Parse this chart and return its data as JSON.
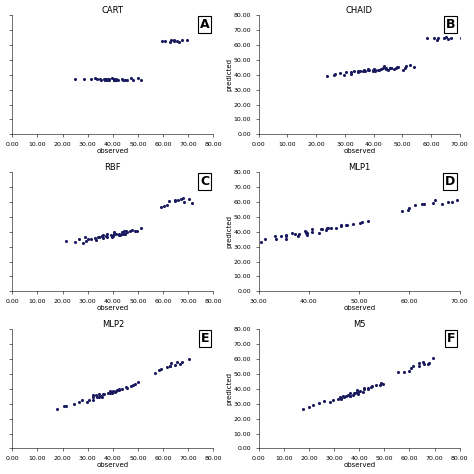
{
  "panels": [
    {
      "label": "A",
      "title": "CART",
      "xlabel": "observed",
      "ylabel": "",
      "xlim": [
        0,
        80
      ],
      "ylim": [
        0,
        80
      ],
      "xticks": [
        0,
        10,
        20,
        30,
        40,
        50,
        60,
        70,
        80
      ],
      "yticks": [
        0,
        10,
        20,
        30,
        40,
        50,
        60,
        70,
        80
      ],
      "show_yticklabels": false,
      "cluster1_x": [
        25,
        28,
        31,
        33,
        34,
        35,
        35,
        36,
        36,
        37,
        37,
        37,
        38,
        38,
        38,
        39,
        39,
        39,
        40,
        40,
        40,
        40,
        41,
        41,
        41,
        42,
        42,
        43,
        44,
        45,
        46,
        47,
        48,
        50,
        52
      ],
      "cluster1_y": [
        37,
        37,
        37,
        37,
        37,
        37,
        37,
        37,
        37,
        37,
        37,
        37,
        37,
        37,
        37,
        37,
        37,
        37,
        37,
        37,
        37,
        37,
        37,
        37,
        37,
        37,
        37,
        37,
        37,
        37,
        37,
        37,
        37,
        37,
        37
      ],
      "cluster2_x": [
        59,
        61,
        62,
        63,
        64,
        65,
        66,
        67,
        68,
        70
      ],
      "cluster2_y": [
        63,
        63,
        63,
        63,
        63,
        63,
        63,
        63,
        63,
        63
      ]
    },
    {
      "label": "B",
      "title": "CHAID",
      "xlabel": "observed",
      "ylabel": "predicted",
      "xlim": [
        0,
        70
      ],
      "ylim": [
        0,
        80
      ],
      "xticks": [
        0,
        10,
        20,
        30,
        40,
        50,
        60,
        70
      ],
      "yticks": [
        0,
        10,
        20,
        30,
        40,
        50,
        60,
        70,
        80
      ],
      "show_yticklabels": true,
      "cluster1_x": [
        24,
        26,
        27,
        28,
        30,
        31,
        32,
        33,
        34,
        34,
        35,
        35,
        36,
        36,
        37,
        37,
        38,
        38,
        39,
        39,
        40,
        40,
        40,
        41,
        41,
        42,
        42,
        43,
        43,
        44,
        44,
        45,
        45,
        46,
        46,
        47,
        47,
        48,
        48,
        49,
        50,
        51,
        52,
        53,
        54
      ],
      "cluster1_y": [
        39,
        40,
        40,
        41,
        40,
        41,
        41,
        42,
        41,
        42,
        42,
        43,
        42,
        43,
        42,
        43,
        43,
        44,
        43,
        44,
        42,
        43,
        44,
        43,
        44,
        43,
        44,
        44,
        45,
        43,
        44,
        44,
        45,
        44,
        45,
        44,
        45,
        45,
        46,
        45,
        44,
        45,
        45,
        46,
        46
      ],
      "cluster2_x": [
        59,
        61,
        62,
        63,
        64,
        65,
        66,
        67,
        70
      ],
      "cluster2_y": [
        65,
        65,
        64,
        65,
        64,
        65,
        64,
        65,
        65
      ]
    },
    {
      "label": "C",
      "title": "RBF",
      "xlabel": "observed",
      "ylabel": "",
      "xlim": [
        0,
        80
      ],
      "ylim": [
        0,
        80
      ],
      "xticks": [
        0,
        10,
        20,
        30,
        40,
        50,
        60,
        70,
        80
      ],
      "yticks": [
        0,
        10,
        20,
        30,
        40,
        50,
        60,
        70,
        80
      ],
      "show_yticklabels": false,
      "cluster1_x": [
        22,
        25,
        27,
        28,
        29,
        30,
        31,
        32,
        33,
        33,
        34,
        34,
        35,
        35,
        36,
        36,
        37,
        37,
        38,
        38,
        39,
        39,
        40,
        40,
        40,
        41,
        41,
        42,
        42,
        43,
        43,
        44,
        44,
        45,
        45,
        46,
        46,
        47,
        48,
        49,
        50,
        51
      ],
      "cluster1_y": [
        33,
        34,
        35,
        33,
        36,
        34,
        35,
        36,
        35,
        36,
        37,
        36,
        37,
        36,
        37,
        38,
        36,
        37,
        38,
        37,
        38,
        37,
        38,
        39,
        37,
        38,
        39,
        38,
        39,
        38,
        39,
        38,
        39,
        40,
        39,
        40,
        39,
        40,
        41,
        40,
        41,
        42
      ],
      "cluster2_x": [
        59,
        61,
        62,
        63,
        64,
        65,
        66,
        67,
        68,
        69,
        70,
        72
      ],
      "cluster2_y": [
        57,
        58,
        59,
        60,
        61,
        60,
        61,
        62,
        63,
        61,
        62,
        60
      ]
    },
    {
      "label": "D",
      "title": "MLP1",
      "xlabel": "observed",
      "ylabel": "predicted",
      "xlim": [
        30,
        70
      ],
      "ylim": [
        0,
        80
      ],
      "xticks": [
        30,
        40,
        50,
        60,
        70
      ],
      "yticks": [
        0,
        10,
        20,
        30,
        40,
        50,
        60,
        70,
        80
      ],
      "show_yticklabels": true,
      "cluster1_x": [
        31,
        32,
        33,
        34,
        35,
        35,
        36,
        36,
        37,
        37,
        38,
        38,
        39,
        39,
        40,
        40,
        40,
        41,
        41,
        42,
        42,
        43,
        43,
        44,
        44,
        45,
        45,
        46,
        46,
        47,
        48,
        49,
        50,
        51,
        52
      ],
      "cluster1_y": [
        34,
        35,
        36,
        37,
        36,
        37,
        38,
        37,
        38,
        39,
        38,
        39,
        38,
        39,
        39,
        40,
        41,
        40,
        41,
        40,
        41,
        41,
        42,
        42,
        43,
        42,
        43,
        43,
        44,
        44,
        45,
        45,
        46,
        47,
        48
      ],
      "cluster2_x": [
        58,
        59,
        60,
        61,
        62,
        63,
        64,
        65,
        66,
        67,
        68,
        70
      ],
      "cluster2_y": [
        54,
        55,
        57,
        58,
        59,
        58,
        60,
        61,
        59,
        60,
        61,
        62
      ]
    },
    {
      "label": "E",
      "title": "MLP2",
      "xlabel": "observed",
      "ylabel": "",
      "xlim": [
        0,
        80
      ],
      "ylim": [
        0,
        80
      ],
      "xticks": [
        0,
        10,
        20,
        30,
        40,
        50,
        60,
        70,
        80
      ],
      "yticks": [
        0,
        10,
        20,
        30,
        40,
        50,
        60,
        70,
        80
      ],
      "show_yticklabels": false,
      "cluster1_x": [
        18,
        20,
        22,
        24,
        26,
        28,
        30,
        31,
        32,
        33,
        33,
        34,
        34,
        35,
        35,
        36,
        36,
        37,
        37,
        38,
        38,
        39,
        39,
        40,
        40,
        41,
        41,
        42,
        42,
        43,
        44,
        45,
        46,
        47,
        48,
        49,
        50
      ],
      "cluster1_y": [
        27,
        28,
        29,
        30,
        31,
        32,
        32,
        33,
        33,
        34,
        35,
        34,
        35,
        35,
        36,
        35,
        36,
        36,
        37,
        37,
        38,
        37,
        38,
        38,
        39,
        38,
        39,
        39,
        40,
        40,
        40,
        41,
        41,
        42,
        42,
        43,
        44
      ],
      "cluster2_x": [
        56,
        58,
        59,
        61,
        62,
        63,
        64,
        65,
        66,
        67,
        68,
        70
      ],
      "cluster2_y": [
        51,
        52,
        53,
        55,
        56,
        55,
        57,
        56,
        58,
        57,
        58,
        60
      ]
    },
    {
      "label": "F",
      "title": "M5",
      "xlabel": "observed",
      "ylabel": "predicted",
      "xlim": [
        0,
        80
      ],
      "ylim": [
        0,
        80
      ],
      "xticks": [
        0,
        10,
        20,
        30,
        40,
        50,
        60,
        70,
        80
      ],
      "yticks": [
        0,
        10,
        20,
        30,
        40,
        50,
        60,
        70,
        80
      ],
      "show_yticklabels": true,
      "cluster1_x": [
        18,
        20,
        22,
        24,
        26,
        28,
        30,
        31,
        32,
        33,
        33,
        34,
        34,
        35,
        35,
        36,
        36,
        37,
        37,
        38,
        38,
        39,
        39,
        40,
        40,
        41,
        41,
        42,
        42,
        43,
        44,
        45,
        46,
        47,
        48,
        49,
        50
      ],
      "cluster1_y": [
        27,
        28,
        29,
        30,
        31,
        32,
        32,
        33,
        33,
        34,
        35,
        34,
        35,
        35,
        36,
        35,
        36,
        36,
        37,
        37,
        38,
        37,
        38,
        38,
        39,
        38,
        39,
        39,
        40,
        40,
        40,
        41,
        41,
        42,
        42,
        43,
        44
      ],
      "cluster2_x": [
        56,
        58,
        59,
        61,
        62,
        63,
        64,
        65,
        66,
        67,
        68,
        70
      ],
      "cluster2_y": [
        51,
        52,
        53,
        55,
        56,
        55,
        57,
        56,
        58,
        57,
        58,
        60
      ]
    }
  ],
  "dot_color": "#1a1a5e",
  "dot_size": 5,
  "background_color": "#ffffff",
  "label_fontsize": 9,
  "title_fontsize": 6,
  "tick_fontsize": 4.5,
  "axis_label_fontsize": 5
}
